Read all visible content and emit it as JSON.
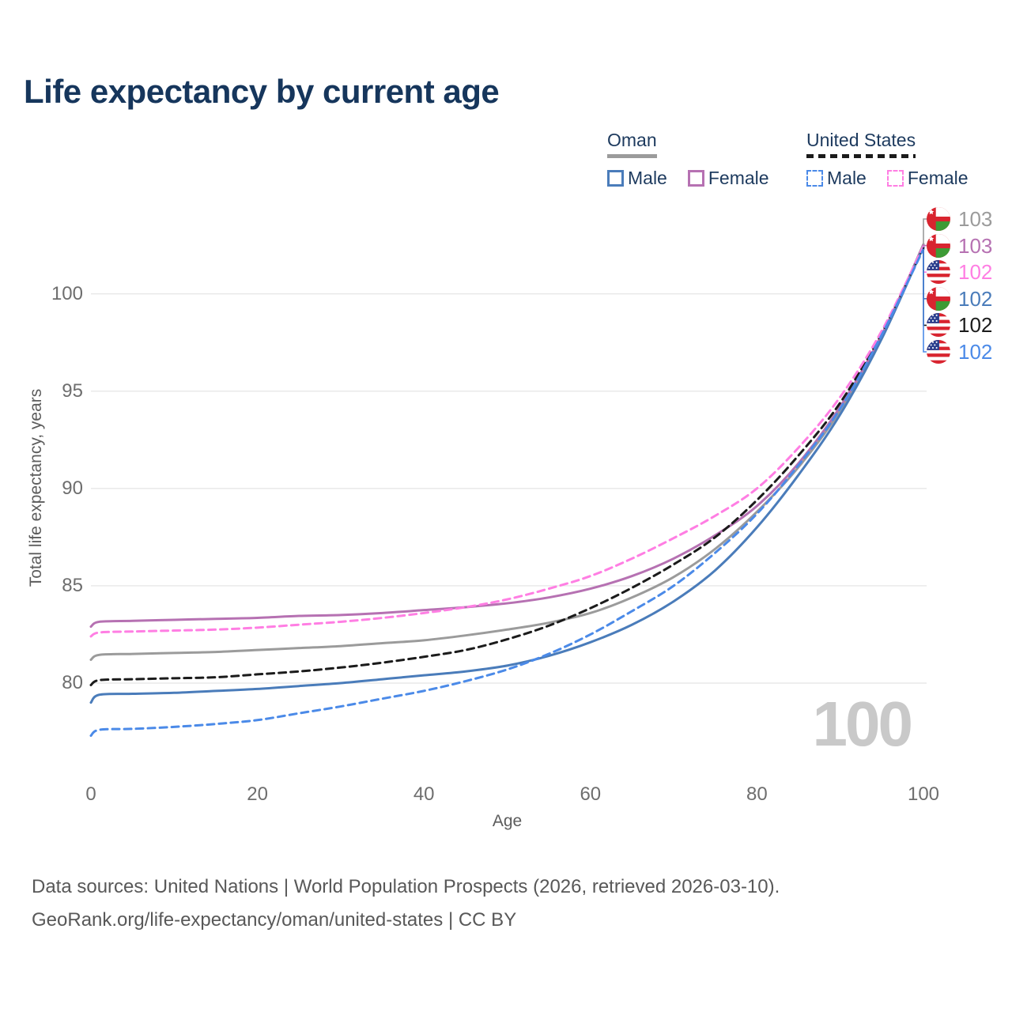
{
  "title": "Life expectancy by current age",
  "legend": {
    "groups": [
      {
        "label": "Oman",
        "line_style": "solid",
        "underline_color": "#9b9b9b",
        "items": [
          {
            "label": "Male",
            "color": "#4a7cba"
          },
          {
            "label": "Female",
            "color": "#b671b2"
          }
        ]
      },
      {
        "label": "United States",
        "line_style": "dashed",
        "underline_color": "#1b1b1b",
        "items": [
          {
            "label": "Male",
            "color": "#4b8ae8"
          },
          {
            "label": "Female",
            "color": "#ff7ee3"
          }
        ]
      }
    ]
  },
  "chart_data": {
    "type": "line",
    "title": "Life expectancy by current age",
    "xlabel": "Age",
    "ylabel": "Total life expectancy, years",
    "xlim": [
      0,
      100
    ],
    "ylim": [
      76,
      104
    ],
    "xticks": [
      0,
      20,
      40,
      60,
      80,
      100
    ],
    "yticks": [
      80,
      85,
      90,
      95,
      100
    ],
    "grid": true,
    "legend_position": "top-right",
    "x": [
      0,
      1,
      5,
      10,
      15,
      20,
      25,
      30,
      35,
      40,
      45,
      50,
      55,
      60,
      65,
      70,
      75,
      80,
      85,
      90,
      95,
      100
    ],
    "series": [
      {
        "id": "oman-both",
        "name": "Oman Both sexes",
        "country": "Oman",
        "color": "#9b9b9b",
        "dash": false,
        "values": [
          81.2,
          81.45,
          81.5,
          81.55,
          81.6,
          81.7,
          81.8,
          81.9,
          82.05,
          82.2,
          82.45,
          82.75,
          83.1,
          83.6,
          84.4,
          85.45,
          86.9,
          88.8,
          91.1,
          94.0,
          97.8,
          102.55
        ]
      },
      {
        "id": "oman-female",
        "name": "Oman Female",
        "country": "Oman",
        "color": "#b671b2",
        "dash": false,
        "values": [
          82.9,
          83.15,
          83.2,
          83.25,
          83.3,
          83.35,
          83.45,
          83.5,
          83.6,
          83.75,
          83.9,
          84.1,
          84.4,
          84.85,
          85.5,
          86.4,
          87.6,
          89.1,
          91.3,
          94.2,
          97.9,
          102.5
        ]
      },
      {
        "id": "oman-male",
        "name": "Oman Male",
        "country": "Oman",
        "color": "#4a7cba",
        "dash": false,
        "values": [
          79.0,
          79.4,
          79.45,
          79.5,
          79.6,
          79.7,
          79.85,
          80.0,
          80.2,
          80.4,
          80.6,
          80.9,
          81.4,
          82.1,
          83.0,
          84.2,
          85.8,
          88.0,
          90.7,
          93.8,
          97.7,
          102.42
        ]
      },
      {
        "id": "us-both",
        "name": "United States Both sexes",
        "country": "United States",
        "color": "#1b1b1b",
        "dash": true,
        "values": [
          79.9,
          80.15,
          80.2,
          80.25,
          80.3,
          80.45,
          80.6,
          80.8,
          81.05,
          81.35,
          81.7,
          82.25,
          82.95,
          83.85,
          84.9,
          86.1,
          87.5,
          89.4,
          91.7,
          94.4,
          98.0,
          102.38
        ]
      },
      {
        "id": "us-female",
        "name": "United States Female",
        "country": "United States",
        "color": "#ff7ee3",
        "dash": true,
        "values": [
          82.4,
          82.6,
          82.65,
          82.7,
          82.75,
          82.85,
          83.0,
          83.15,
          83.35,
          83.6,
          83.9,
          84.3,
          84.85,
          85.5,
          86.4,
          87.45,
          88.6,
          90.0,
          92.1,
          94.7,
          98.1,
          102.44
        ]
      },
      {
        "id": "us-male",
        "name": "United States Male",
        "country": "United States",
        "color": "#4b8ae8",
        "dash": true,
        "values": [
          77.3,
          77.6,
          77.65,
          77.75,
          77.9,
          78.1,
          78.45,
          78.8,
          79.2,
          79.6,
          80.1,
          80.7,
          81.5,
          82.5,
          83.7,
          85.0,
          86.7,
          88.7,
          91.2,
          94.1,
          97.9,
          102.3
        ]
      }
    ],
    "end_labels": [
      {
        "series_id": "oman-both",
        "flag": "oman",
        "value": "103",
        "color": "#9b9b9b"
      },
      {
        "series_id": "oman-female",
        "flag": "oman",
        "value": "103",
        "color": "#b671b2"
      },
      {
        "series_id": "us-female",
        "flag": "us",
        "value": "102",
        "color": "#ff7ee3"
      },
      {
        "series_id": "oman-male",
        "flag": "oman",
        "value": "102",
        "color": "#4a7cba"
      },
      {
        "series_id": "us-both",
        "flag": "us",
        "value": "102",
        "color": "#1b1b1b"
      },
      {
        "series_id": "us-male",
        "flag": "us",
        "value": "102",
        "color": "#4b8ae8"
      }
    ],
    "hover_age_watermark": "100"
  },
  "footer": {
    "line1": "Data sources: United Nations | World Population Prospects (2026, retrieved 2026-03-10).",
    "line2": "GeoRank.org/life-expectancy/oman/united-states | CC BY"
  }
}
